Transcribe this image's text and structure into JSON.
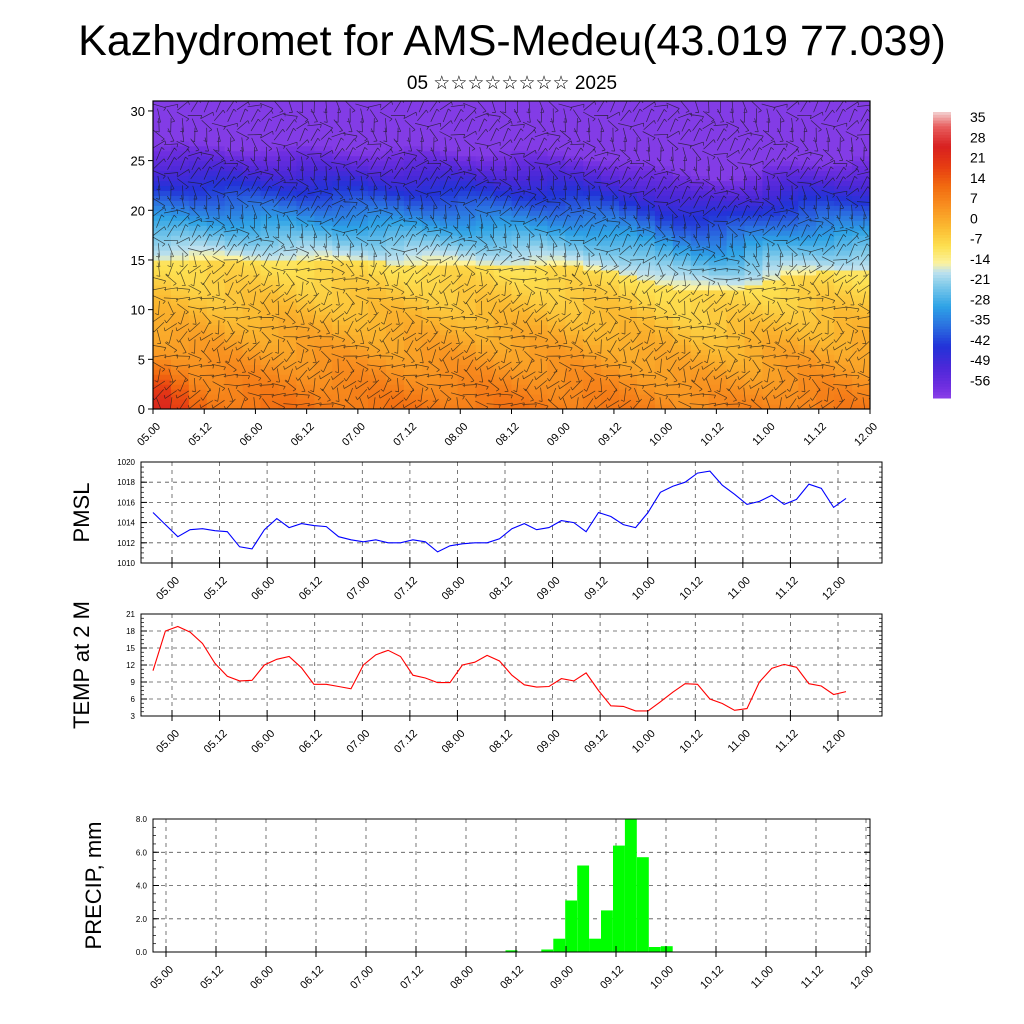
{
  "header": {
    "title": "Kazhydromet for AMS-Medeu(43.019 77.039)",
    "subtitle": "05 ☆☆☆☆☆☆☆☆ 2025"
  },
  "time_ticks": [
    "05.00",
    "05.12",
    "06.00",
    "06.12",
    "07.00",
    "07.12",
    "08.00",
    "08.12",
    "09.00",
    "09.12",
    "10.00",
    "10.12",
    "11.00",
    "11.12",
    "12.00"
  ],
  "chart_data": [
    {
      "id": "cross-section",
      "type": "heatmap",
      "y_range": [
        0,
        31
      ],
      "y_ticks": [
        0,
        5,
        10,
        15,
        20,
        25,
        30
      ],
      "colorbar": {
        "labels": [
          "35",
          "28",
          "21",
          "14",
          "7",
          "0",
          "-7",
          "-14",
          "-21",
          "-28",
          "-35",
          "-42",
          "-49",
          "-56"
        ],
        "range": [
          -60,
          40
        ],
        "stops": [
          {
            "v": 40,
            "c": "#f3d4d4"
          },
          {
            "v": 35,
            "c": "#e86060"
          },
          {
            "v": 28,
            "c": "#d82020"
          },
          {
            "v": 21,
            "c": "#e63c12"
          },
          {
            "v": 14,
            "c": "#f26a10"
          },
          {
            "v": 7,
            "c": "#f89020"
          },
          {
            "v": 0,
            "c": "#fbb830"
          },
          {
            "v": -7,
            "c": "#fde050"
          },
          {
            "v": -13,
            "c": "#fcf3a0"
          },
          {
            "v": -16,
            "c": "#bfe1ee"
          },
          {
            "v": -21,
            "c": "#7bc8ea"
          },
          {
            "v": -28,
            "c": "#2ea3e6"
          },
          {
            "v": -35,
            "c": "#2b6fe0"
          },
          {
            "v": -42,
            "c": "#2233d8"
          },
          {
            "v": -49,
            "c": "#4a28d8"
          },
          {
            "v": -56,
            "c": "#6f2ee0"
          },
          {
            "v": -60,
            "c": "#8a40e8"
          }
        ]
      }
    },
    {
      "id": "pmsl",
      "type": "line",
      "ylabel": "PMSL",
      "ylim": [
        1010,
        1020
      ],
      "y_ticks": [
        "1010",
        "1012",
        "1014",
        "1016",
        "1018",
        "1020"
      ],
      "color": "#0000ff",
      "values": [
        1015.0,
        1013.8,
        1012.6,
        1013.3,
        1013.4,
        1013.2,
        1013.1,
        1011.6,
        1011.4,
        1013.3,
        1014.4,
        1013.5,
        1013.9,
        1013.7,
        1013.6,
        1012.6,
        1012.3,
        1012.1,
        1012.3,
        1012.0,
        1012.0,
        1012.3,
        1012.1,
        1011.1,
        1011.7,
        1011.9,
        1012.0,
        1012.0,
        1012.4,
        1013.4,
        1013.9,
        1013.3,
        1013.5,
        1014.2,
        1014.0,
        1013.1,
        1015.0,
        1014.6,
        1013.8,
        1013.5,
        1015.0,
        1017.0,
        1017.6,
        1018.0,
        1018.9,
        1019.1,
        1017.7,
        1016.8,
        1015.8,
        1016.1,
        1016.7,
        1015.8,
        1016.3,
        1017.8,
        1017.4,
        1015.5,
        1016.4
      ]
    },
    {
      "id": "temp",
      "type": "line",
      "ylabel": "TEMP at 2 M",
      "ylim": [
        3,
        21
      ],
      "y_ticks": [
        "3",
        "6",
        "9",
        "12",
        "15",
        "18",
        "21"
      ],
      "color": "#ff0000",
      "values": [
        11.0,
        18.0,
        18.8,
        17.8,
        15.8,
        12.3,
        10.0,
        9.2,
        9.3,
        12.0,
        13.0,
        13.5,
        11.5,
        8.6,
        8.6,
        8.2,
        7.8,
        12.0,
        13.8,
        14.6,
        13.5,
        10.2,
        9.7,
        8.9,
        8.9,
        12.0,
        12.5,
        13.7,
        12.7,
        10.2,
        8.5,
        8.1,
        8.2,
        9.6,
        9.2,
        10.6,
        7.5,
        4.8,
        4.7,
        3.9,
        3.9,
        5.5,
        7.2,
        8.7,
        8.6,
        6.0,
        5.2,
        4.0,
        4.3,
        9.0,
        11.4,
        12.1,
        11.6,
        8.7,
        8.3,
        6.8,
        7.3
      ]
    },
    {
      "id": "precip",
      "type": "bar",
      "ylabel": "PRECIP, mm",
      "ylim": [
        0,
        8
      ],
      "y_ticks": [
        "0.0",
        "2.0",
        "4.0",
        "6.0",
        "8.0"
      ],
      "color": "#00ff00",
      "values": [
        0,
        0,
        0,
        0,
        0,
        0,
        0,
        0,
        0,
        0,
        0,
        0,
        0,
        0,
        0,
        0,
        0,
        0,
        0,
        0,
        0,
        0,
        0,
        0,
        0,
        0,
        0,
        0,
        0,
        0.1,
        0,
        0,
        0.15,
        0.8,
        3.1,
        5.2,
        0.8,
        2.5,
        6.4,
        8.0,
        5.7,
        0.3,
        0.35,
        0,
        0,
        0,
        0,
        0,
        0,
        0,
        0,
        0,
        0,
        0,
        0,
        0,
        0
      ]
    }
  ]
}
